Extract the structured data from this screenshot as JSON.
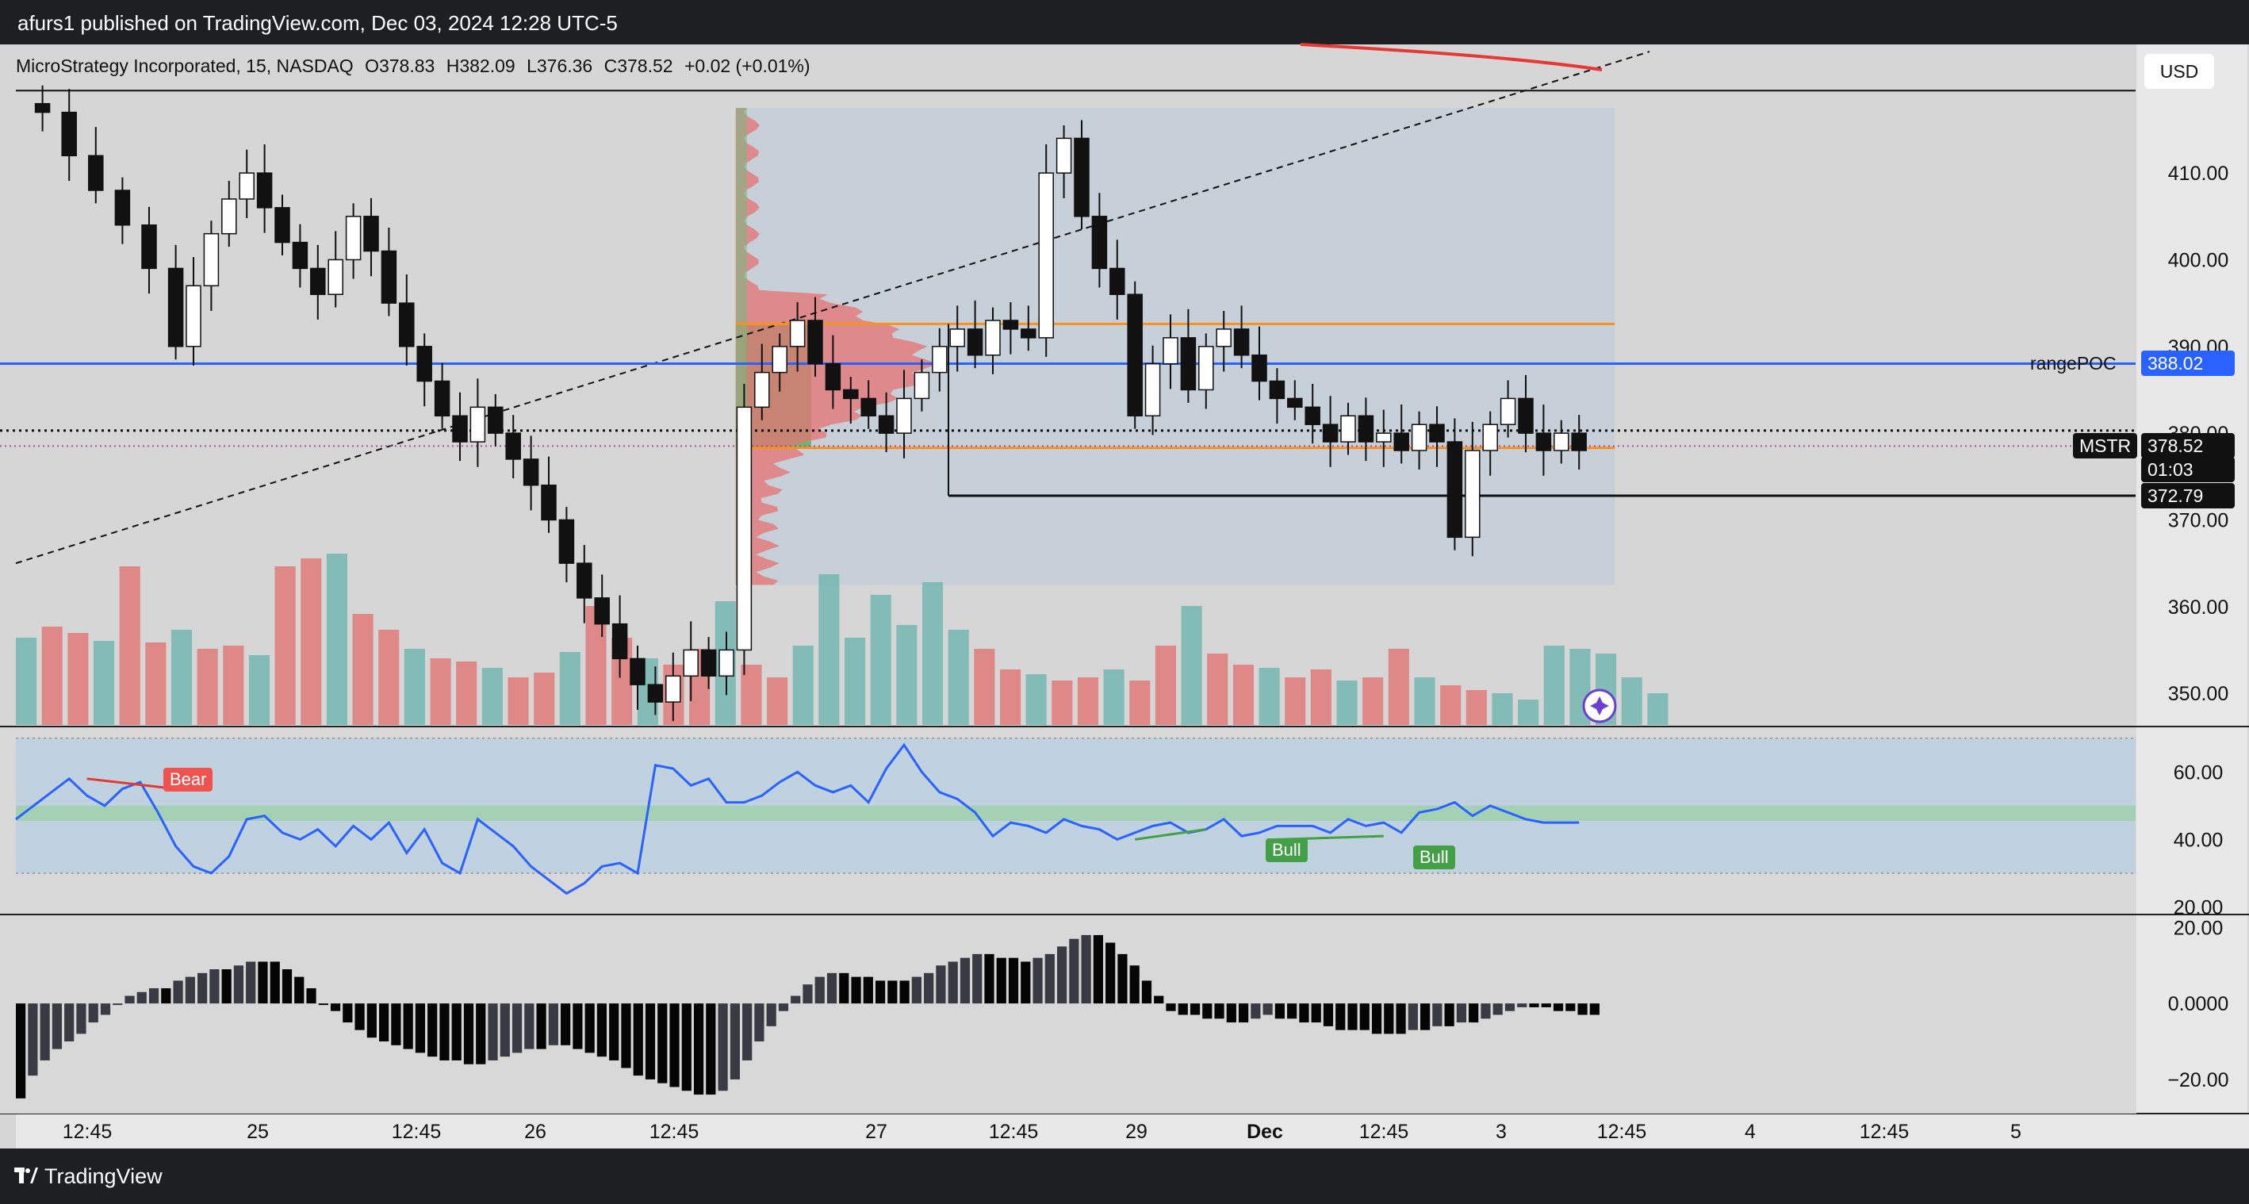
{
  "header": {
    "published": "afurs1 published on TradingView.com, Dec 03, 2024 12:28 UTC-5"
  },
  "legend": {
    "symbol": "MicroStrategy Incorporated, 15, NASDAQ",
    "open": "O378.83",
    "high": "H382.09",
    "low": "L376.36",
    "close": "C378.52",
    "change": "+0.02 (+0.01%)"
  },
  "currency": "USD",
  "footer": {
    "brand": "TradingView"
  },
  "colors": {
    "up": "#26a69a",
    "down": "#ef5350",
    "poc": "#2962ff",
    "rsi": "#2962ff",
    "orange": "#f7931a"
  },
  "chart_data": [
    {
      "type": "candlestick",
      "title": "",
      "price_axis": {
        "ticks": [
          "410.00",
          "400.00",
          "390.00",
          "380.00",
          "370.00",
          "360.00",
          "350.00"
        ],
        "range": [
          348,
          423
        ]
      },
      "time_axis": {
        "ticks": [
          "12:45",
          "25",
          "12:45",
          "26",
          "12:45",
          "27",
          "12:45",
          "29",
          "Dec",
          "12:45",
          "3",
          "12:45",
          "4",
          "12:45",
          "5"
        ]
      },
      "price_labels": {
        "rangepoc_name": "rangePOC",
        "rangepoc_value": "388.02",
        "symbol_tag": "MSTR",
        "last_price": "378.52",
        "countdown": "01:03",
        "support_value": "372.79"
      },
      "levels": {
        "rangepoc": 388.02,
        "value_area_high": 392.6,
        "value_area_low": 378.3,
        "last_price": 378.52,
        "dotted_line": 380.3,
        "support": 372.79
      },
      "volume_profile": {
        "price_range": [
          362.5,
          417.5
        ],
        "poc": 388.02
      },
      "candles_close_path": [
        [
          0,
          418
        ],
        [
          6,
          417
        ],
        [
          12,
          412
        ],
        [
          18,
          408
        ],
        [
          24,
          404
        ],
        [
          30,
          399
        ],
        [
          36,
          390
        ],
        [
          40,
          397
        ],
        [
          44,
          403
        ],
        [
          48,
          407
        ],
        [
          52,
          410
        ],
        [
          56,
          406
        ],
        [
          60,
          402
        ],
        [
          64,
          399
        ],
        [
          68,
          396
        ],
        [
          72,
          400
        ],
        [
          76,
          405
        ],
        [
          80,
          401
        ],
        [
          84,
          395
        ],
        [
          88,
          390
        ],
        [
          92,
          386
        ],
        [
          96,
          382
        ],
        [
          100,
          379
        ],
        [
          104,
          383
        ],
        [
          108,
          380
        ],
        [
          112,
          377
        ],
        [
          116,
          374
        ],
        [
          120,
          370
        ],
        [
          124,
          365
        ],
        [
          128,
          361
        ],
        [
          132,
          358
        ],
        [
          136,
          354
        ],
        [
          140,
          351
        ],
        [
          144,
          349
        ],
        [
          148,
          352
        ],
        [
          152,
          355
        ],
        [
          156,
          352
        ],
        [
          160,
          355
        ],
        [
          164,
          383
        ],
        [
          168,
          387
        ],
        [
          172,
          390
        ],
        [
          176,
          393
        ],
        [
          180,
          388
        ],
        [
          184,
          385
        ],
        [
          188,
          384
        ],
        [
          192,
          382
        ],
        [
          196,
          380
        ],
        [
          200,
          384
        ],
        [
          204,
          387
        ],
        [
          208,
          390
        ],
        [
          212,
          392
        ],
        [
          216,
          389
        ],
        [
          220,
          393
        ],
        [
          224,
          392
        ],
        [
          228,
          391
        ],
        [
          232,
          410
        ],
        [
          236,
          414
        ],
        [
          240,
          405
        ],
        [
          244,
          399
        ],
        [
          248,
          396
        ],
        [
          252,
          382
        ],
        [
          256,
          388
        ],
        [
          260,
          391
        ],
        [
          264,
          385
        ],
        [
          268,
          390
        ],
        [
          272,
          392
        ],
        [
          276,
          389
        ],
        [
          280,
          386
        ],
        [
          284,
          384
        ],
        [
          288,
          383
        ],
        [
          292,
          381
        ],
        [
          296,
          379
        ],
        [
          300,
          382
        ],
        [
          304,
          379
        ],
        [
          308,
          380
        ],
        [
          312,
          378
        ],
        [
          316,
          381
        ],
        [
          320,
          379
        ],
        [
          324,
          368
        ],
        [
          328,
          378
        ],
        [
          332,
          381
        ],
        [
          336,
          384
        ],
        [
          340,
          380
        ],
        [
          344,
          378
        ],
        [
          348,
          380
        ],
        [
          352,
          378
        ]
      ]
    },
    {
      "type": "bar",
      "title": "",
      "name": "Volume",
      "values_relative": [
        0.55,
        0.62,
        0.58,
        0.53,
        1.0,
        0.52,
        0.6,
        0.48,
        0.5,
        0.44,
        1.0,
        1.05,
        1.08,
        0.7,
        0.6,
        0.48,
        0.42,
        0.4,
        0.36,
        0.3,
        0.33,
        0.46,
        0.75,
        0.55,
        0.42,
        0.38,
        0.48,
        0.78,
        0.38,
        0.3,
        0.5,
        0.95,
        0.55,
        0.82,
        0.63,
        0.9,
        0.6,
        0.48,
        0.35,
        0.32,
        0.28,
        0.3,
        0.35,
        0.28,
        0.5,
        0.75,
        0.45,
        0.38,
        0.36,
        0.3,
        0.35,
        0.28,
        0.3,
        0.48,
        0.3,
        0.25,
        0.22,
        0.2,
        0.16,
        0.5,
        0.48,
        0.45,
        0.3,
        0.2
      ]
    },
    {
      "type": "line",
      "title": "",
      "name": "RSI",
      "yticks": [
        "60.00",
        "40.00",
        "20.00"
      ],
      "ylim": [
        18,
        73
      ],
      "bands": {
        "upper": 70,
        "lower": 30,
        "mid_low": 45.5,
        "mid_high": 50
      },
      "divergence_labels": {
        "bear": "Bear",
        "bull_1": "Bull",
        "bull_2": "Bull"
      },
      "x": [
        0,
        4,
        8,
        12,
        16,
        20,
        24,
        28,
        32,
        36,
        40,
        44,
        48,
        52,
        56,
        60,
        64,
        68,
        72,
        76,
        80,
        84,
        88,
        92,
        96,
        100,
        104,
        108,
        112,
        116,
        120,
        124,
        128,
        132,
        136,
        140,
        144,
        148,
        152,
        156,
        160,
        164,
        168,
        172,
        176,
        180,
        184,
        188,
        192,
        196,
        200,
        204,
        208,
        212,
        216,
        220,
        224,
        228,
        232,
        236,
        240,
        244,
        248,
        256,
        260,
        264,
        268,
        272,
        276,
        280,
        284,
        288,
        292,
        296,
        300,
        304,
        308,
        312,
        316,
        320,
        324,
        328,
        332,
        336,
        340,
        344,
        348,
        352
      ],
      "values": [
        46,
        50,
        54,
        58,
        53,
        50,
        55,
        57,
        48,
        38,
        32,
        30,
        35,
        46,
        47,
        42,
        40,
        43,
        38,
        44,
        40,
        45,
        36,
        43,
        33,
        30,
        46,
        42,
        38,
        32,
        28,
        24,
        27,
        32,
        33,
        30,
        62,
        61,
        56,
        58,
        51,
        51,
        53,
        57,
        60,
        56,
        54,
        56,
        51,
        61,
        68,
        60,
        54,
        52,
        48,
        41,
        45,
        44,
        42,
        46,
        44,
        43,
        40,
        44,
        45,
        42,
        43,
        46,
        41,
        42,
        44,
        44,
        44,
        42,
        46,
        44,
        45,
        42,
        48,
        49,
        51,
        47,
        50,
        48,
        46,
        45,
        45,
        45
      ]
    },
    {
      "type": "bar",
      "title": "",
      "name": "Oscillator",
      "yticks": [
        "20.00",
        "0.0000",
        "−20.00"
      ],
      "ylim": [
        -29,
        23
      ],
      "values": [
        -25,
        -19,
        -15,
        -12,
        -10,
        -8,
        -5,
        -3,
        0,
        2,
        3,
        4,
        4,
        6,
        7,
        8,
        9,
        9,
        10,
        11,
        11,
        11,
        9,
        7,
        4,
        0,
        -2,
        -5,
        -7,
        -9,
        -10,
        -11,
        -12,
        -13,
        -14,
        -15,
        -15,
        -16,
        -16,
        -15,
        -14,
        -13,
        -12,
        -12,
        -11,
        -11,
        -12,
        -13,
        -14,
        -15,
        -17,
        -19,
        -20,
        -21,
        -22,
        -23,
        -24,
        -24,
        -23,
        -20,
        -15,
        -10,
        -6,
        -2,
        2,
        5,
        7,
        8,
        8,
        7,
        7,
        6,
        6,
        6,
        7,
        8,
        10,
        11,
        12,
        13,
        13,
        12,
        12,
        11,
        12,
        13,
        15,
        17,
        18,
        18,
        16,
        13,
        10,
        6,
        2,
        -2,
        -3,
        -3,
        -4,
        -4,
        -5,
        -5,
        -4,
        -3,
        -4,
        -4,
        -5,
        -5,
        -6,
        -7,
        -7,
        -7,
        -8,
        -8,
        -8,
        -7,
        -7,
        -6,
        -6,
        -5,
        -5,
        -4,
        -3,
        -2,
        -1,
        -1,
        -1,
        -2,
        -2,
        -3,
        -3
      ]
    }
  ]
}
